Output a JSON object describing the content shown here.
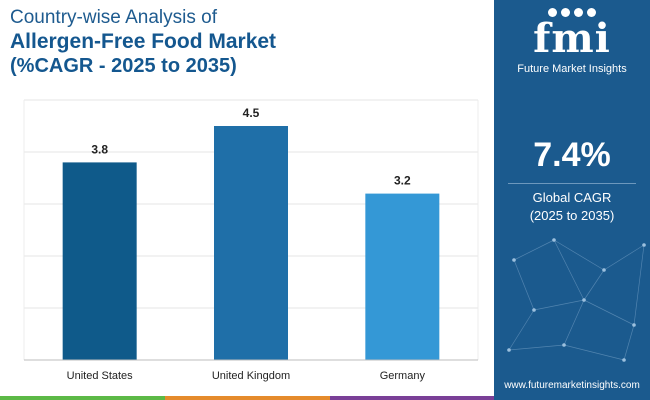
{
  "header": {
    "line1": "Country-wise Analysis of",
    "line2": "Allergen-Free Food Market",
    "line3": "(%CAGR - 2025 to 2035)"
  },
  "chart_data": {
    "type": "bar",
    "categories": [
      "United States",
      "United Kingdom",
      "Germany"
    ],
    "values": [
      3.8,
      4.5,
      3.2
    ],
    "value_labels": [
      "3.8",
      "4.5",
      "3.2"
    ],
    "bar_colors": [
      "#0f5a8a",
      "#1f6fa8",
      "#3498d6"
    ],
    "title": "Country-wise Analysis of Allergen-Free Food Market (%CAGR - 2025 to 2035)",
    "xlabel": "",
    "ylabel": "",
    "ylim": [
      0,
      5
    ],
    "gridlines": [
      1,
      2,
      3,
      4,
      5
    ],
    "grid": true
  },
  "side_panel": {
    "logo_mark": "fmi",
    "logo_text": "Future Market Insights",
    "kpi_value": "7.4%",
    "kpi_label": "Global CAGR",
    "kpi_period": "(2025 to 2035)",
    "website": "www.futuremarketinsights.com",
    "background": "#1b5a8e"
  },
  "strip_colors": [
    "#5cb946",
    "#e58b2c",
    "#7a3f97",
    "#1b5a8e"
  ]
}
